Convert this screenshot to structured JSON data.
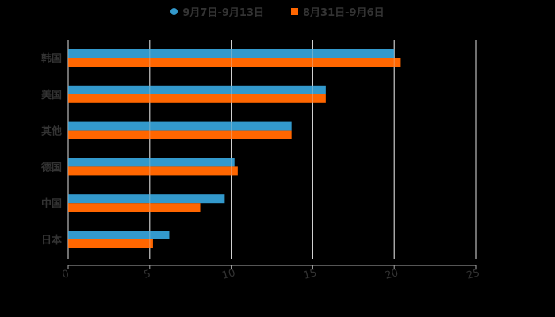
{
  "chart_data": {
    "type": "bar",
    "orientation": "horizontal",
    "title": "",
    "xlabel": "",
    "ylabel": "",
    "categories": [
      "韩国",
      "美国",
      "其他",
      "德国",
      "中国",
      "日本"
    ],
    "series": [
      {
        "name": "9月7日-9月13日",
        "color": "#3399cc",
        "values": [
          20.0,
          15.8,
          13.7,
          10.2,
          9.6,
          6.2
        ]
      },
      {
        "name": "8月31日-9月6日",
        "color": "#ff6600",
        "values": [
          20.4,
          15.8,
          13.7,
          10.4,
          8.1,
          5.2
        ]
      }
    ],
    "xlim": [
      0,
      25
    ],
    "xticks": [
      "0",
      "5",
      "10",
      "15",
      "20",
      "25"
    ],
    "grid": true,
    "legend_position": "top"
  },
  "legend": {
    "items": [
      {
        "label": "9月7日-9月13日",
        "color": "#3399cc",
        "shape": "circle"
      },
      {
        "label": "8月31日-9月6日",
        "color": "#ff6600",
        "shape": "square"
      }
    ]
  }
}
